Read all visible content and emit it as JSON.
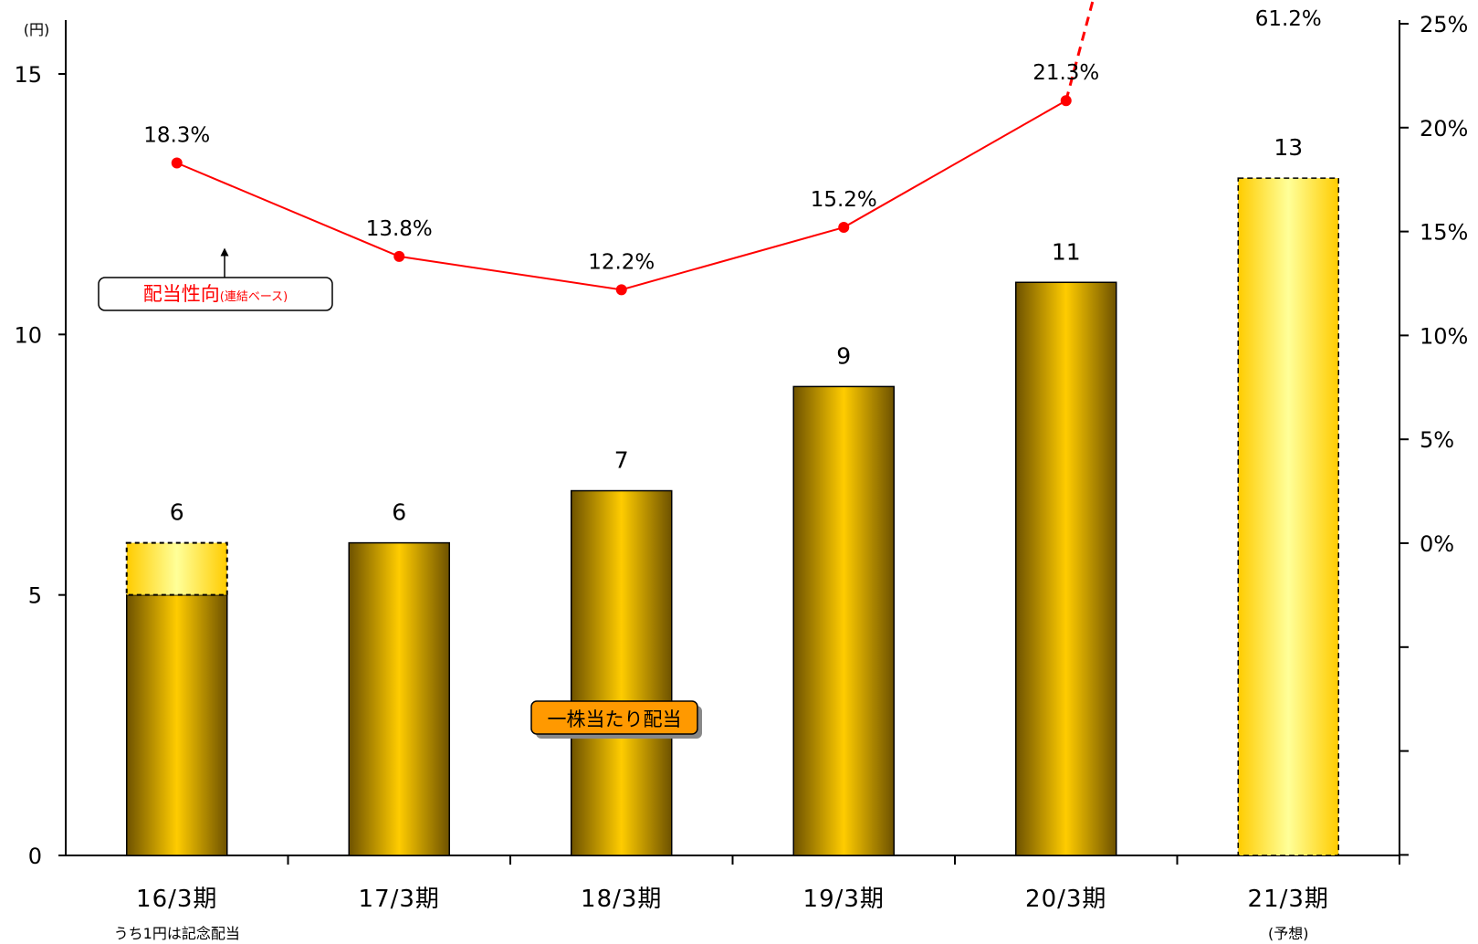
{
  "chart_data": {
    "type": "bar+line",
    "y_unit_label": "(円)",
    "categories": [
      "16/3期",
      "17/3期",
      "18/3期",
      "19/3期",
      "20/3期",
      "21/3期"
    ],
    "category_notes": [
      "うち1円は記念配当",
      "",
      "",
      "",
      "",
      "(予想)"
    ],
    "bars": {
      "name": "一株当たり配当",
      "values": [
        6,
        6,
        7,
        9,
        11,
        13
      ],
      "commemorative_portion": [
        1,
        0,
        0,
        0,
        0,
        0
      ],
      "forecast": [
        false,
        false,
        false,
        false,
        false,
        true
      ],
      "value_labels": [
        "6",
        "6",
        "7",
        "9",
        "11",
        "13"
      ]
    },
    "line": {
      "name": "配当性向",
      "name_note": "(連結ベース)",
      "values": [
        18.3,
        13.8,
        12.2,
        15.2,
        21.3,
        61.2
      ],
      "value_labels": [
        "18.3%",
        "13.8%",
        "12.2%",
        "15.2%",
        "21.3%",
        "61.2%"
      ],
      "forecast": [
        false,
        false,
        false,
        false,
        false,
        true
      ],
      "color": "#ff0000"
    },
    "y_left": {
      "min": 0,
      "max": 15,
      "ticks": [
        0,
        5,
        10,
        15
      ],
      "tick_labels": [
        "0",
        "5",
        "10",
        "15"
      ]
    },
    "y_right": {
      "min": -15,
      "max": 25,
      "ticks": [
        0,
        5,
        10,
        15,
        20,
        25
      ],
      "tick_labels": [
        "0%",
        "5%",
        "10%",
        "15%",
        "20%",
        "25%"
      ]
    },
    "colors": {
      "bar_dark": "#7a5e00",
      "bar_light": "#ffcc00",
      "forecast_light": "#ffff99",
      "line": "#ff0000",
      "badge": "#ff9900"
    }
  }
}
